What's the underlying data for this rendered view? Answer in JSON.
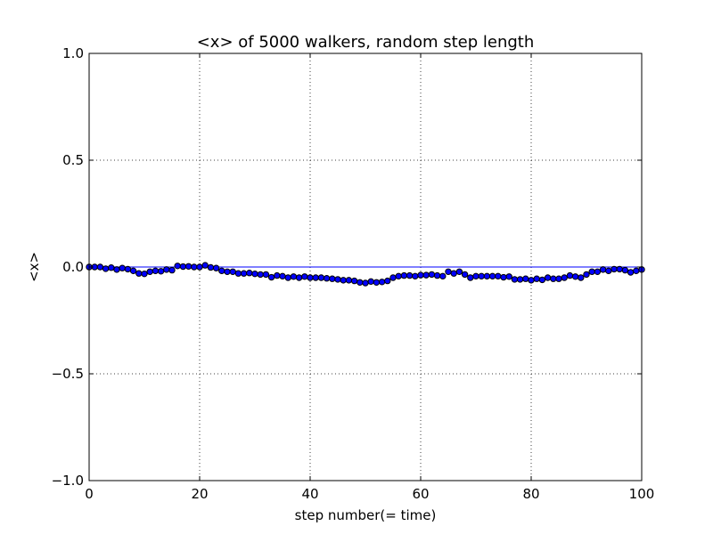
{
  "chart_data": {
    "type": "scatter",
    "title": "<x> of 5000 walkers, random step length",
    "xlabel": "step number(= time)",
    "ylabel": "<x>",
    "xlim": [
      0,
      100
    ],
    "ylim": [
      -1.0,
      1.0
    ],
    "x_ticks": [
      0,
      20,
      40,
      60,
      80,
      100
    ],
    "x_tick_labels": [
      "0",
      "20",
      "40",
      "60",
      "80",
      "100"
    ],
    "y_ticks": [
      -1.0,
      -0.5,
      0.0,
      0.5,
      1.0
    ],
    "y_tick_labels": [
      "−1.0",
      "−0.5",
      "0.0",
      "0.5",
      "1.0"
    ],
    "grid": true,
    "reference_line": {
      "y": 0.0,
      "color": "#0000ff"
    },
    "marker_color": "#0000ff",
    "x": [
      0,
      1,
      2,
      3,
      4,
      5,
      6,
      7,
      8,
      9,
      10,
      11,
      12,
      13,
      14,
      15,
      16,
      17,
      18,
      19,
      20,
      21,
      22,
      23,
      24,
      25,
      26,
      27,
      28,
      29,
      30,
      31,
      32,
      33,
      34,
      35,
      36,
      37,
      38,
      39,
      40,
      41,
      42,
      43,
      44,
      45,
      46,
      47,
      48,
      49,
      50,
      51,
      52,
      53,
      54,
      55,
      56,
      57,
      58,
      59,
      60,
      61,
      62,
      63,
      64,
      65,
      66,
      67,
      68,
      69,
      70,
      71,
      72,
      73,
      74,
      75,
      76,
      77,
      78,
      79,
      80,
      81,
      82,
      83,
      84,
      85,
      86,
      87,
      88,
      89,
      90,
      91,
      92,
      93,
      94,
      95,
      96,
      97,
      98,
      99,
      100
    ],
    "y": [
      0.0,
      0.0,
      0.0,
      -0.008,
      -0.003,
      -0.012,
      -0.005,
      -0.01,
      -0.018,
      -0.03,
      -0.032,
      -0.022,
      -0.018,
      -0.02,
      -0.012,
      -0.015,
      0.005,
      0.002,
      0.003,
      0.0,
      0.0,
      0.008,
      -0.002,
      -0.005,
      -0.018,
      -0.022,
      -0.022,
      -0.03,
      -0.03,
      -0.028,
      -0.032,
      -0.035,
      -0.035,
      -0.048,
      -0.04,
      -0.043,
      -0.05,
      -0.045,
      -0.05,
      -0.045,
      -0.05,
      -0.05,
      -0.05,
      -0.053,
      -0.055,
      -0.058,
      -0.062,
      -0.062,
      -0.065,
      -0.072,
      -0.075,
      -0.068,
      -0.072,
      -0.07,
      -0.065,
      -0.05,
      -0.043,
      -0.04,
      -0.04,
      -0.043,
      -0.038,
      -0.038,
      -0.035,
      -0.04,
      -0.043,
      -0.022,
      -0.03,
      -0.022,
      -0.035,
      -0.05,
      -0.043,
      -0.043,
      -0.043,
      -0.043,
      -0.043,
      -0.048,
      -0.045,
      -0.058,
      -0.058,
      -0.055,
      -0.062,
      -0.055,
      -0.06,
      -0.05,
      -0.055,
      -0.055,
      -0.05,
      -0.04,
      -0.045,
      -0.05,
      -0.035,
      -0.022,
      -0.022,
      -0.012,
      -0.018,
      -0.01,
      -0.01,
      -0.015,
      -0.025,
      -0.018,
      -0.012
    ]
  }
}
